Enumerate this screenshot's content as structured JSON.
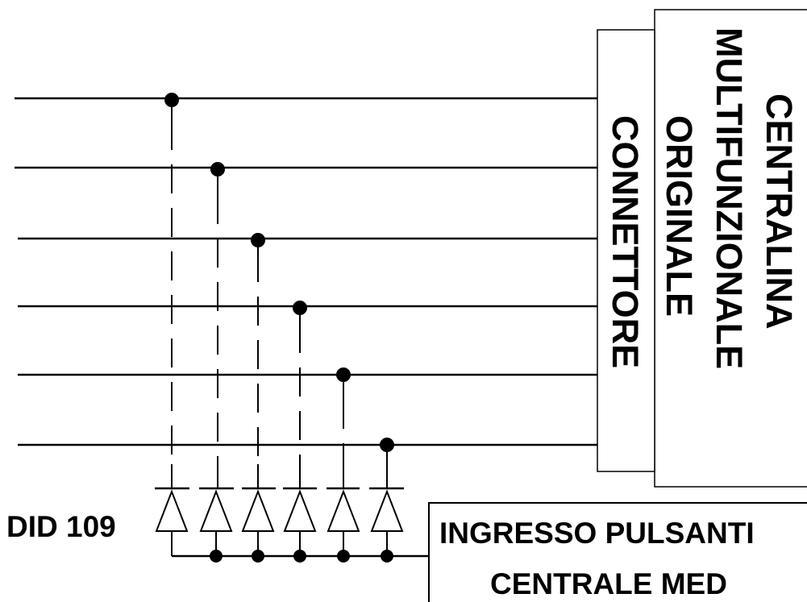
{
  "labels": {
    "diode_part": "DID 109",
    "connector": "CONNETTORE",
    "unit_line1": "ORIGINALE",
    "unit_line2": "MULTIFUNZIONALE",
    "unit_line3": "CENTRALINA",
    "input_line1": "INGRESSO PULSANTI",
    "input_line2": "CENTRALE MED"
  },
  "wires": [
    {
      "name": "wire-1"
    },
    {
      "name": "wire-2"
    },
    {
      "name": "wire-3"
    },
    {
      "name": "wire-4"
    },
    {
      "name": "wire-5"
    },
    {
      "name": "wire-6"
    }
  ],
  "diode_count": 6
}
